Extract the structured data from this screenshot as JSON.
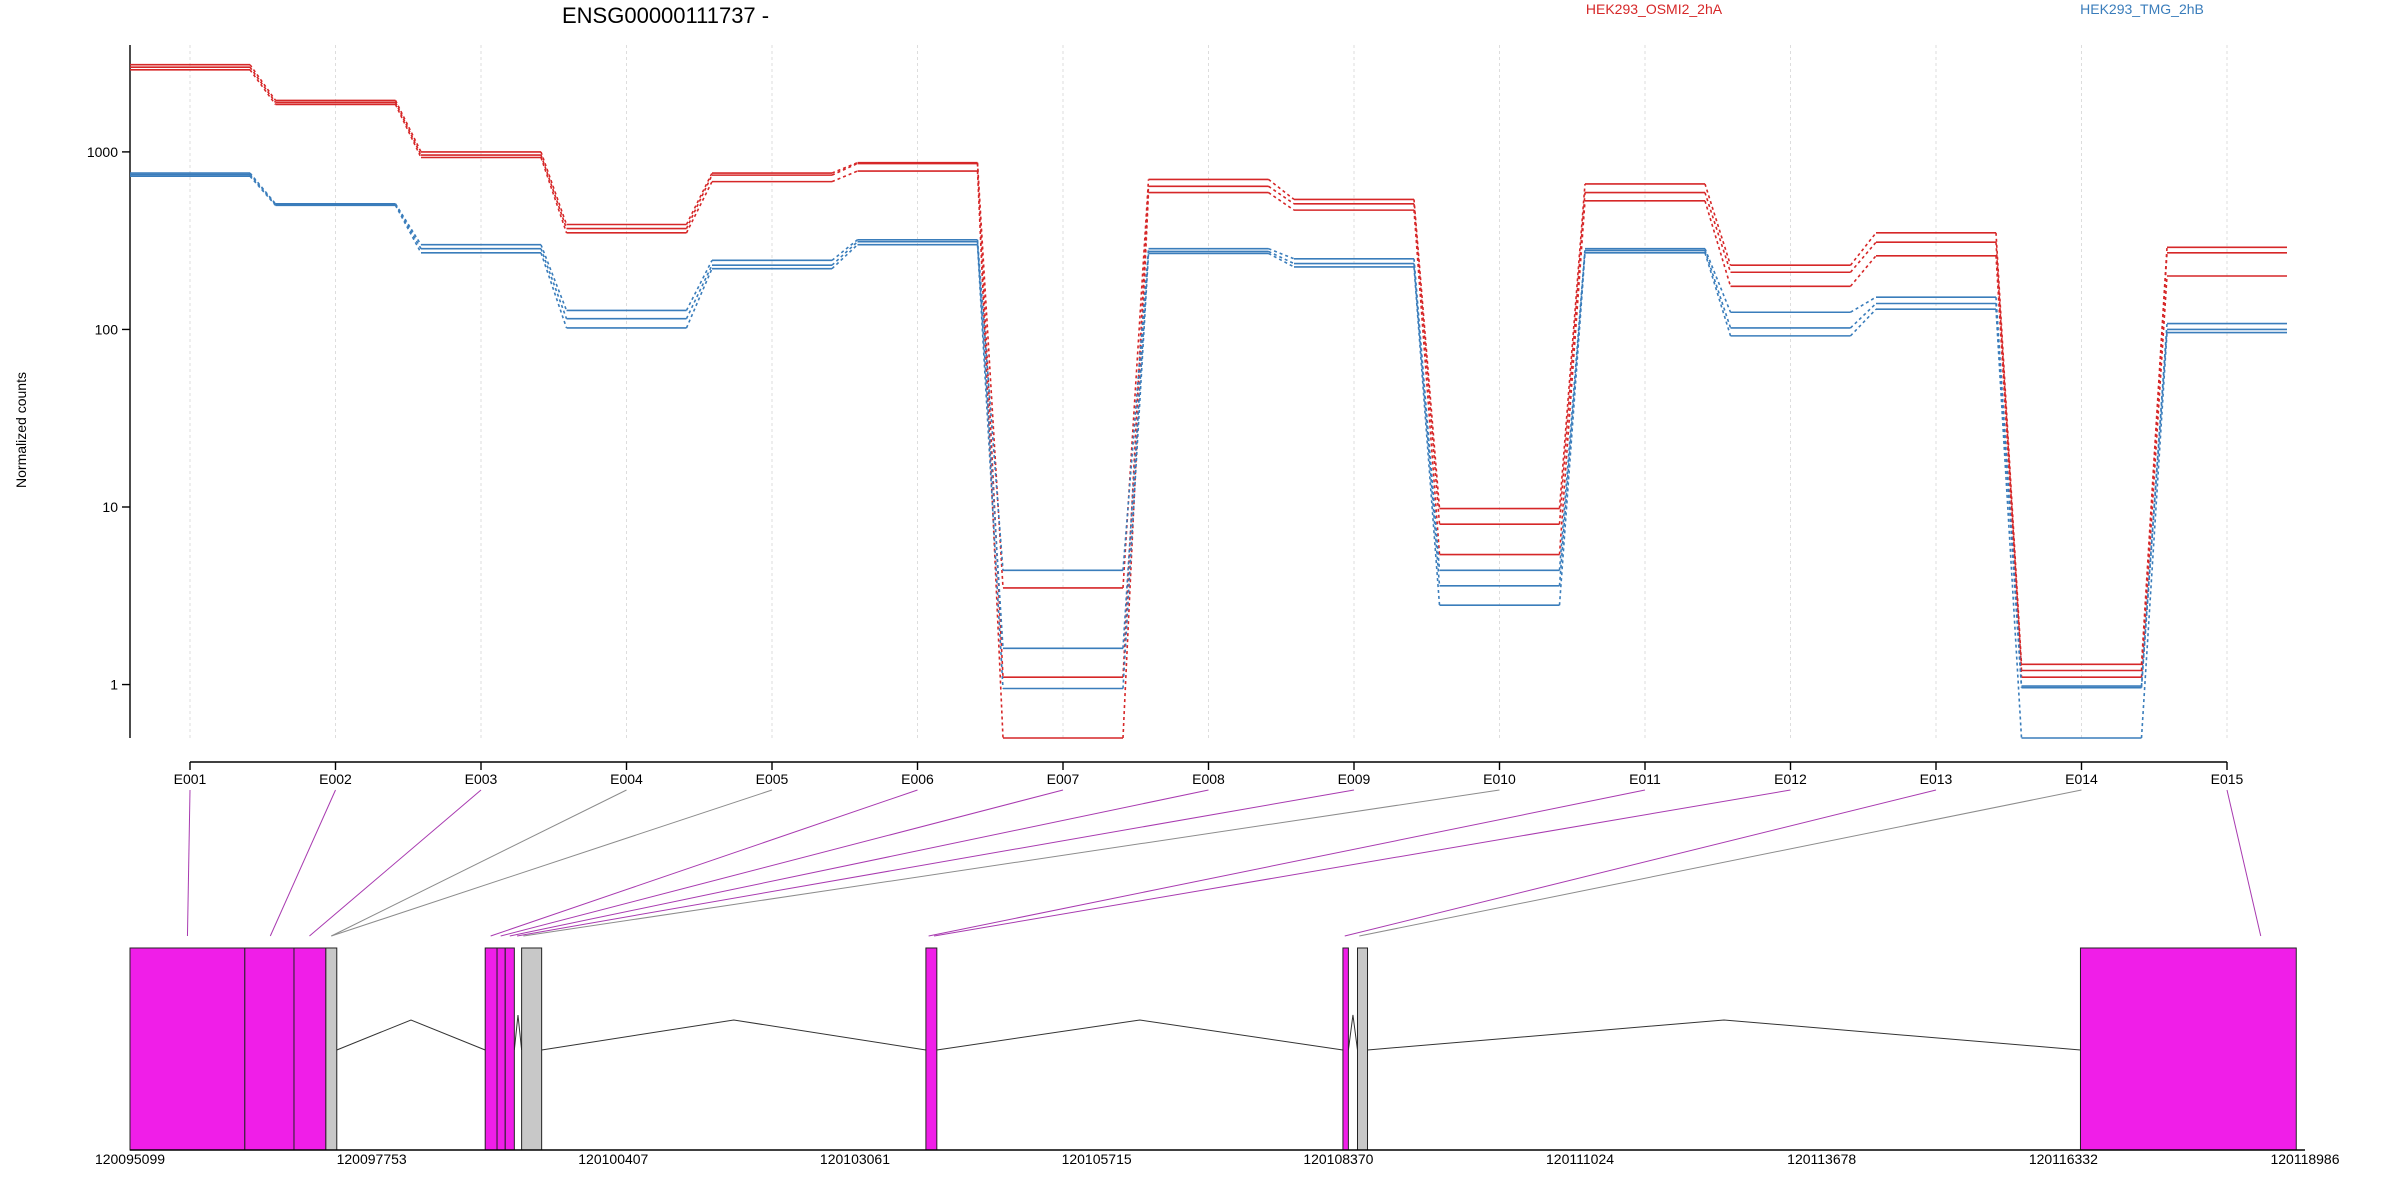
{
  "chart_data": {
    "type": "line",
    "title": "ENSG00000111737 -",
    "ylabel": "Normalized counts",
    "yscale": "log",
    "ylim": [
      0.5,
      4000
    ],
    "y_ticks": [
      1,
      10,
      100,
      1000
    ],
    "y_tick_labels": [
      "1",
      "10",
      "100",
      "1000"
    ],
    "categories": [
      "E001",
      "E002",
      "E003",
      "E004",
      "E005",
      "E006",
      "E007",
      "E008",
      "E009",
      "E010",
      "E011",
      "E012",
      "E013",
      "E014",
      "E015"
    ],
    "legend": [
      "HEK293_OSMI2_2hA",
      "HEK293_TMG_2hB"
    ],
    "colors": {
      "HEK293_OSMI2_2hA": "#d62728",
      "HEK293_TMG_2hB": "#3a7dbb",
      "exon_tested": "#f01ee8",
      "exon_other": "#c8c8c8"
    },
    "series": [
      {
        "group": "HEK293_OSMI2_2hA",
        "values": [
          3100,
          1950,
          1000,
          390,
          760,
          870,
          3.5,
          700,
          540,
          9.8,
          660,
          230,
          350,
          1.3,
          290
        ]
      },
      {
        "group": "HEK293_OSMI2_2hA",
        "values": [
          3000,
          1900,
          960,
          370,
          740,
          860,
          1.1,
          640,
          510,
          8.0,
          590,
          210,
          310,
          1.2,
          270
        ]
      },
      {
        "group": "HEK293_OSMI2_2hA",
        "values": [
          2900,
          1850,
          930,
          350,
          680,
          780,
          0.5,
          590,
          470,
          5.4,
          530,
          175,
          260,
          1.1,
          200
        ]
      },
      {
        "group": "HEK293_TMG_2hB",
        "values": [
          760,
          510,
          300,
          128,
          245,
          320,
          4.4,
          285,
          250,
          4.4,
          285,
          125,
          152,
          0.98,
          108
        ]
      },
      {
        "group": "HEK293_TMG_2hB",
        "values": [
          745,
          505,
          285,
          115,
          230,
          312,
          1.6,
          275,
          235,
          3.6,
          278,
          102,
          140,
          0.96,
          100
        ]
      },
      {
        "group": "HEK293_TMG_2hB",
        "values": [
          730,
          500,
          270,
          102,
          220,
          300,
          0.95,
          268,
          225,
          2.8,
          270,
          92,
          130,
          0.5,
          96
        ]
      }
    ],
    "gene_model": {
      "x_tick_labels": [
        "120095099",
        "120097753",
        "120100407",
        "120103061",
        "120105715",
        "120108370",
        "120111024",
        "120113678",
        "120116332",
        "120118986"
      ],
      "exons": [
        {
          "start": 120095099,
          "end": 120096360,
          "tested": true
        },
        {
          "start": 120096360,
          "end": 120096900,
          "tested": true
        },
        {
          "start": 120096900,
          "end": 120097250,
          "tested": true
        },
        {
          "start": 120097250,
          "end": 120097370,
          "tested": false
        },
        {
          "start": 120099000,
          "end": 120099130,
          "tested": true
        },
        {
          "start": 120099130,
          "end": 120099220,
          "tested": true
        },
        {
          "start": 120099220,
          "end": 120099320,
          "tested": true
        },
        {
          "start": 120099400,
          "end": 120099620,
          "tested": false
        },
        {
          "start": 120103840,
          "end": 120103960,
          "tested": true
        },
        {
          "start": 120108420,
          "end": 120108480,
          "tested": true
        },
        {
          "start": 120108580,
          "end": 120108690,
          "tested": false
        },
        {
          "start": 120116520,
          "end": 120118890,
          "tested": true
        }
      ],
      "links": [
        {
          "label": "E001",
          "genomic": 120095730,
          "tested": true
        },
        {
          "label": "E002",
          "genomic": 120096640,
          "tested": true
        },
        {
          "label": "E003",
          "genomic": 120097070,
          "tested": true
        },
        {
          "label": "E004",
          "genomic": 120097310,
          "tested": false
        },
        {
          "label": "E005",
          "genomic": 120097310,
          "tested": false
        },
        {
          "label": "E006",
          "genomic": 120099060,
          "tested": true
        },
        {
          "label": "E007",
          "genomic": 120099170,
          "tested": true
        },
        {
          "label": "E008",
          "genomic": 120099270,
          "tested": true
        },
        {
          "label": "E009",
          "genomic": 120099350,
          "tested": true
        },
        {
          "label": "E010",
          "genomic": 120099420,
          "tested": false
        },
        {
          "label": "E011",
          "genomic": 120103870,
          "tested": true
        },
        {
          "label": "E012",
          "genomic": 120103930,
          "tested": true
        },
        {
          "label": "E013",
          "genomic": 120108440,
          "tested": true
        },
        {
          "label": "E014",
          "genomic": 120108600,
          "tested": false
        },
        {
          "label": "E015",
          "genomic": 120118500,
          "tested": true
        }
      ]
    }
  }
}
